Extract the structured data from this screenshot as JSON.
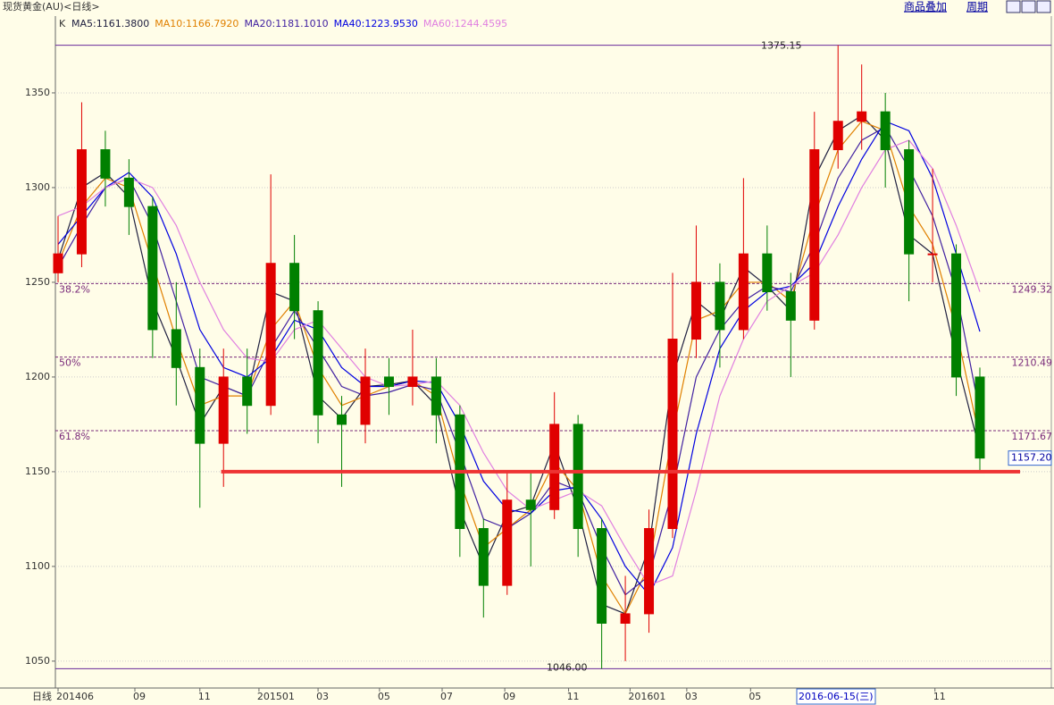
{
  "window_title": "现货黄金(AU)<日线>",
  "toolbar": [
    "商品叠加",
    "周期"
  ],
  "chart_data": {
    "type": "candlestick",
    "legend_title": "K",
    "period_label": "日线",
    "ylim": [
      1035.8,
      1389.6
    ],
    "yticks": [
      1050,
      1100,
      1150,
      1200,
      1250,
      1300,
      1350
    ],
    "xlim": [
      0,
      39
    ],
    "xticks": [
      {
        "value": 0,
        "label": "201406"
      },
      {
        "value": 3.25,
        "label": "09"
      },
      {
        "value": 6.0,
        "label": "11"
      },
      {
        "value": 8.5,
        "label": "201501"
      },
      {
        "value": 11.0,
        "label": "03"
      },
      {
        "value": 13.6,
        "label": "05"
      },
      {
        "value": 16.25,
        "label": "07"
      },
      {
        "value": 18.9,
        "label": "09"
      },
      {
        "value": 21.6,
        "label": "11"
      },
      {
        "value": 24.2,
        "label": "201601"
      },
      {
        "value": 26.6,
        "label": "03"
      },
      {
        "value": 29.3,
        "label": "05"
      },
      {
        "value": 37.1,
        "label": "11"
      }
    ],
    "cursor_date": "2016-06-15(三)",
    "grid": true,
    "up_color": "#e00000",
    "down_color": "#008000",
    "candles": {
      "open": [
        1255,
        1265,
        1320,
        1305,
        1290,
        1225,
        1205,
        1165,
        1200,
        1185,
        1260,
        1235,
        1180,
        1175,
        1200,
        1195,
        1200,
        1180,
        1120,
        1090,
        1135,
        1130,
        1175,
        1120,
        1070,
        1075,
        1120,
        1220,
        1250,
        1225,
        1265,
        1245,
        1230,
        1320,
        1335,
        1340,
        1320,
        1265,
        1265,
        1200
      ],
      "high": [
        1285,
        1345,
        1330,
        1315,
        1295,
        1250,
        1215,
        1215,
        1215,
        1307,
        1275,
        1240,
        1190,
        1215,
        1210,
        1225,
        1210,
        1185,
        1125,
        1150,
        1150,
        1192,
        1180,
        1125,
        1095,
        1130,
        1255,
        1280,
        1260,
        1305,
        1280,
        1255,
        1340,
        1375.15,
        1365,
        1350,
        1325,
        1310,
        1270,
        1205
      ],
      "low": [
        1250,
        1258,
        1290,
        1275,
        1210,
        1185,
        1131,
        1142,
        1170,
        1180,
        1220,
        1165,
        1142,
        1165,
        1180,
        1185,
        1165,
        1105,
        1073,
        1085,
        1100,
        1125,
        1105,
        1046,
        1050,
        1065,
        1115,
        1210,
        1205,
        1220,
        1235,
        1200,
        1225,
        1310,
        1320,
        1300,
        1240,
        1250,
        1190,
        1150
      ],
      "close": [
        1265,
        1320,
        1305,
        1290,
        1225,
        1205,
        1165,
        1200,
        1185,
        1260,
        1235,
        1180,
        1175,
        1200,
        1195,
        1200,
        1180,
        1120,
        1090,
        1135,
        1130,
        1175,
        1120,
        1070,
        1075,
        1120,
        1220,
        1250,
        1225,
        1265,
        1245,
        1230,
        1320,
        1335,
        1340,
        1320,
        1265,
        1265,
        1200,
        1157.2
      ]
    },
    "series": [
      {
        "name": "MA5:1161.3800",
        "color": "#202040",
        "values": [
          1262,
          1300,
          1308,
          1295,
          1240,
          1210,
          1175,
          1195,
          1190,
          1245,
          1240,
          1190,
          1178,
          1195,
          1196,
          1198,
          1185,
          1130,
          1100,
          1128,
          1132,
          1165,
          1130,
          1080,
          1075,
          1110,
          1200,
          1240,
          1230,
          1258,
          1248,
          1235,
          1305,
          1330,
          1338,
          1325,
          1275,
          1265,
          1210,
          1161
        ]
      },
      {
        "name": "MA10:1166.7920",
        "color": "#e08000",
        "values": [
          1260,
          1290,
          1305,
          1300,
          1260,
          1220,
          1185,
          1190,
          1190,
          1225,
          1240,
          1205,
          1185,
          1190,
          1195,
          1198,
          1190,
          1145,
          1110,
          1120,
          1130,
          1155,
          1140,
          1095,
          1075,
          1100,
          1170,
          1230,
          1235,
          1250,
          1250,
          1240,
          1285,
          1320,
          1335,
          1330,
          1290,
          1270,
          1225,
          1167
        ]
      },
      {
        "name": "MA20:1181.1010",
        "color": "#4020a0",
        "values": [
          1258,
          1280,
          1300,
          1305,
          1280,
          1240,
          1200,
          1195,
          1190,
          1215,
          1235,
          1215,
          1195,
          1190,
          1192,
          1196,
          1193,
          1160,
          1125,
          1120,
          1128,
          1145,
          1140,
          1110,
          1085,
          1095,
          1140,
          1200,
          1225,
          1240,
          1248,
          1245,
          1270,
          1305,
          1325,
          1332,
          1310,
          1285,
          1245,
          1181
        ]
      },
      {
        "name": "MA40:1223.9530",
        "color": "#0000e0",
        "values": [
          1270,
          1285,
          1300,
          1308,
          1295,
          1265,
          1225,
          1205,
          1200,
          1210,
          1230,
          1225,
          1205,
          1195,
          1195,
          1198,
          1197,
          1175,
          1145,
          1130,
          1128,
          1140,
          1142,
          1125,
          1100,
          1085,
          1110,
          1170,
          1215,
          1235,
          1245,
          1248,
          1260,
          1290,
          1315,
          1335,
          1330,
          1305,
          1265,
          1224
        ]
      },
      {
        "name": "MA60:1244.4595",
        "color": "#e080e0",
        "values": [
          1285,
          1290,
          1300,
          1305,
          1300,
          1280,
          1250,
          1225,
          1210,
          1208,
          1225,
          1230,
          1215,
          1200,
          1195,
          1196,
          1198,
          1185,
          1160,
          1140,
          1130,
          1135,
          1140,
          1132,
          1110,
          1090,
          1095,
          1140,
          1190,
          1220,
          1240,
          1248,
          1255,
          1275,
          1300,
          1320,
          1325,
          1310,
          1280,
          1245
        ]
      }
    ],
    "extremes": [
      {
        "value": 1375.15
      },
      {
        "value": 1046,
        "label": "1046.00"
      }
    ],
    "fib_levels": [
      {
        "label": "38.2%",
        "value": 1249.32
      },
      {
        "label": "50%",
        "value": 1210.49
      },
      {
        "label": "61.8%",
        "value": 1171.67
      }
    ],
    "support_line": {
      "value": 1150,
      "color": "#ee3333",
      "from": 6.9,
      "to": 40.7
    },
    "last_price": {
      "value": 1157.2,
      "label": "1157.20"
    }
  }
}
